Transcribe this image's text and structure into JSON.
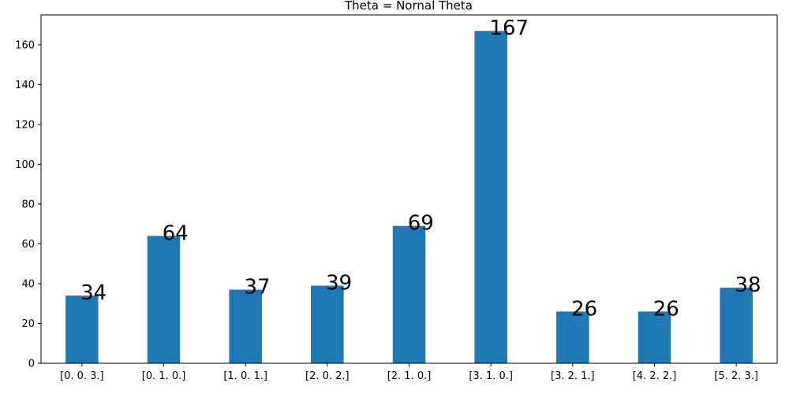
{
  "chart_data": {
    "type": "bar",
    "title": "Theta = Nornal Theta",
    "xlabel": "",
    "ylabel": "",
    "categories": [
      "[0. 0. 3.]",
      "[0. 1. 0.]",
      "[1. 0. 1.]",
      "[2. 0. 2.]",
      "[2. 1. 0.]",
      "[3. 1. 0.]",
      "[3. 2. 1.]",
      "[4. 2. 2.]",
      "[5. 2. 3.]"
    ],
    "values": [
      34,
      64,
      37,
      39,
      69,
      167,
      26,
      26,
      38
    ],
    "ylim": [
      0,
      175
    ],
    "yticks": [
      0,
      20,
      40,
      60,
      80,
      100,
      120,
      140,
      160
    ],
    "grid": false,
    "legend": "none",
    "bar_color": "#1f77b4"
  }
}
